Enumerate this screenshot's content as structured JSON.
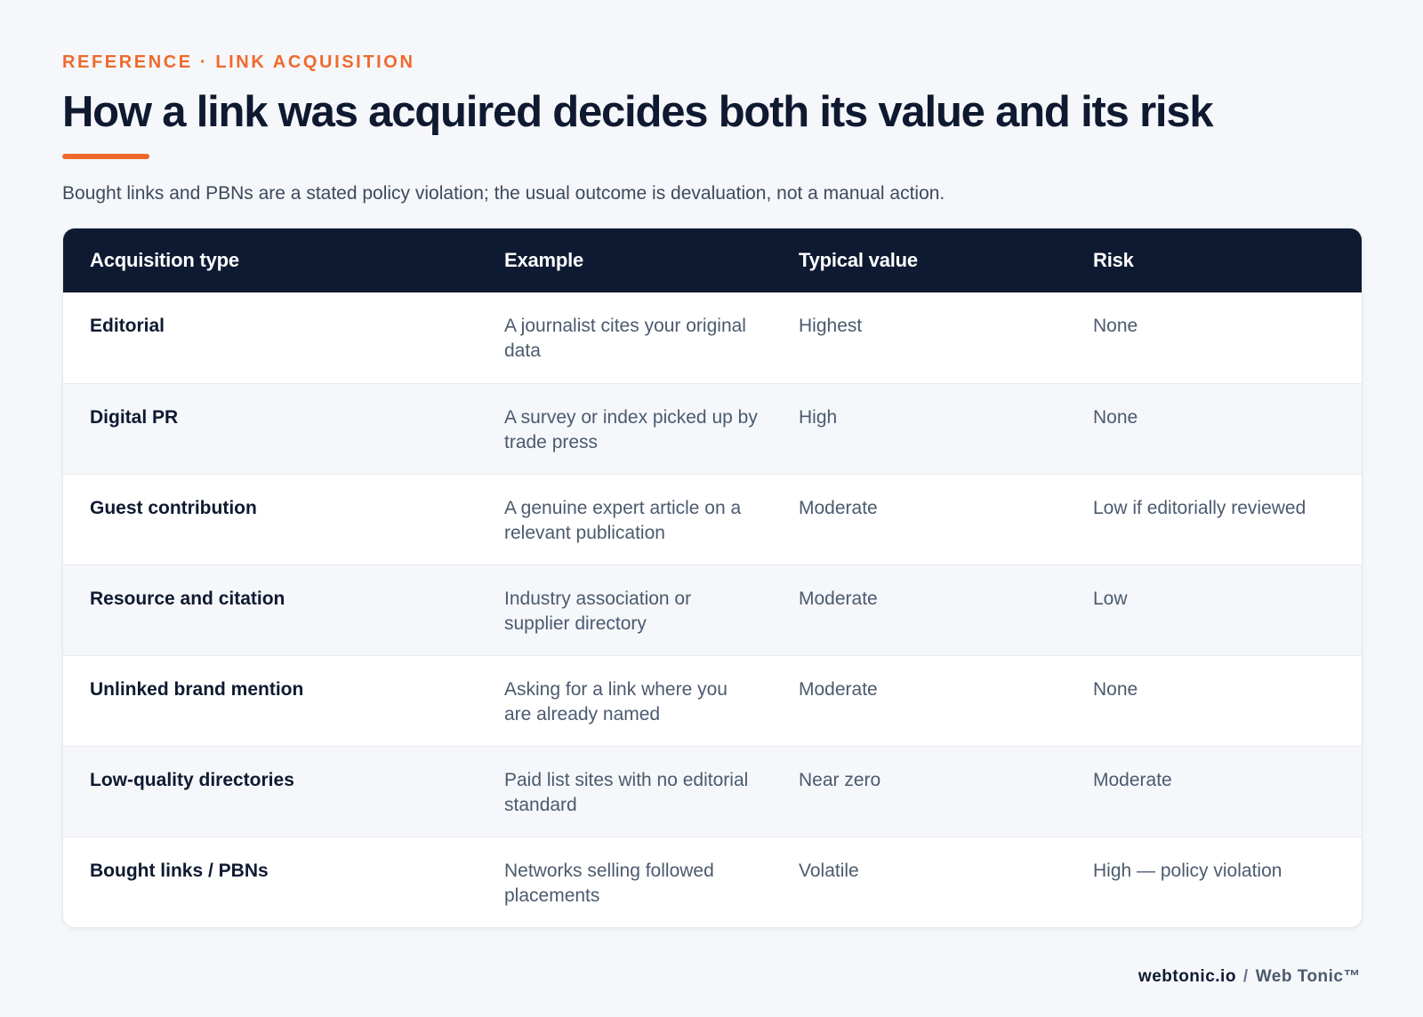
{
  "header": {
    "eyebrow": "REFERENCE · LINK ACQUISITION",
    "title": "How a link was acquired decides both its value and its risk",
    "subtitle": "Bought links and PBNs are a stated policy violation; the usual outcome is devaluation, not a manual action."
  },
  "table": {
    "columns": [
      "Acquisition type",
      "Example",
      "Typical value",
      "Risk"
    ],
    "rows": [
      {
        "type": "Editorial",
        "example": "A journalist cites your original data",
        "value": "Highest",
        "risk": "None"
      },
      {
        "type": "Digital PR",
        "example": "A survey or index picked up by trade press",
        "value": "High",
        "risk": "None"
      },
      {
        "type": "Guest contribution",
        "example": "A genuine expert article on a relevant publication",
        "value": "Moderate",
        "risk": "Low if editorially reviewed"
      },
      {
        "type": "Resource and citation",
        "example": "Industry association or supplier directory",
        "value": "Moderate",
        "risk": "Low"
      },
      {
        "type": "Unlinked brand mention",
        "example": "Asking for a link where you are already named",
        "value": "Moderate",
        "risk": "None"
      },
      {
        "type": "Low-quality directories",
        "example": "Paid list sites with no editorial standard",
        "value": "Near zero",
        "risk": "Moderate"
      },
      {
        "type": "Bought links / PBNs",
        "example": "Networks selling followed placements",
        "value": "Volatile",
        "risk": "High — policy violation"
      }
    ]
  },
  "footer": {
    "domain": "webtonic.io",
    "separator": "/",
    "brand": "Web Tonic™"
  },
  "colors": {
    "accent": "#ee6a2c",
    "header_bg": "#0e1a31",
    "page_bg": "#f5f7fa"
  }
}
